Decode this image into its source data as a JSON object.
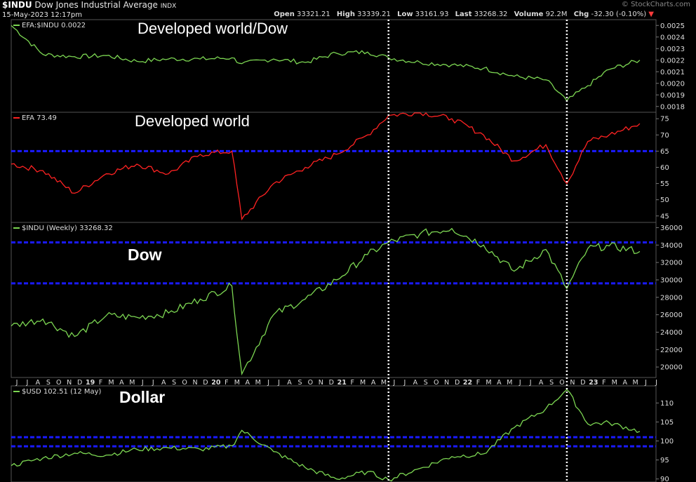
{
  "header": {
    "symbol": "$INDU",
    "name": "Dow Jones Industrial Average",
    "exchange": "INDX",
    "date": "15-May-2023 12:17pm",
    "brand": "© StockCharts.com",
    "open_label": "Open",
    "open": "33321.21",
    "high_label": "High",
    "high": "33339.21",
    "low_label": "Low",
    "low": "33161.93",
    "last_label": "Last",
    "last": "33268.32",
    "volume_label": "Volume",
    "volume": "92.2M",
    "chg_label": "Chg",
    "chg": "-32.30 (-0.10%)"
  },
  "annotations": {
    "ratio": "Developed world/Dow",
    "efa": "Developed world",
    "dow": "Dow",
    "dollar": "Dollar"
  },
  "colors": {
    "background": "#000000",
    "green": "#7cd652",
    "red": "#ff2222",
    "blue_dash": "#1a1aff",
    "marker": "#ffffff"
  },
  "chart_data": [
    {
      "type": "line",
      "legend": "EFA:$INDU 0.0022",
      "ylim": [
        0.00175,
        0.00255
      ],
      "yticks": [
        "0.0018",
        "0.0019",
        "0.0020",
        "0.0021",
        "0.0022",
        "0.0023",
        "0.0024",
        "0.0025"
      ],
      "color": "#7cd652",
      "x": [
        "2018-05",
        "2018-08",
        "2018-11",
        "2019-02",
        "2019-05",
        "2019-08",
        "2019-11",
        "2020-02",
        "2020-03",
        "2020-06",
        "2020-09",
        "2020-12",
        "2021-03",
        "2021-05",
        "2021-08",
        "2021-11",
        "2022-02",
        "2022-05",
        "2022-08",
        "2022-10",
        "2022-12",
        "2023-02",
        "2023-05"
      ],
      "y": [
        0.0025,
        0.00225,
        0.00223,
        0.00224,
        0.00219,
        0.00221,
        0.00221,
        0.00222,
        0.00217,
        0.00221,
        0.00218,
        0.00226,
        0.00227,
        0.00222,
        0.00218,
        0.00216,
        0.00213,
        0.00206,
        0.00203,
        0.00185,
        0.00198,
        0.00212,
        0.0022
      ]
    },
    {
      "type": "line",
      "legend": "EFA 73.49",
      "ylim": [
        43,
        77
      ],
      "yticks": [
        "45",
        "50",
        "55",
        "60",
        "65",
        "70",
        "75"
      ],
      "color": "#ff2222",
      "hlines": [
        65
      ],
      "x": [
        "2018-05",
        "2018-08",
        "2018-11",
        "2019-02",
        "2019-05",
        "2019-08",
        "2019-11",
        "2020-02",
        "2020-03",
        "2020-06",
        "2020-09",
        "2020-12",
        "2021-03",
        "2021-05",
        "2021-08",
        "2021-11",
        "2022-02",
        "2022-05",
        "2022-08",
        "2022-10",
        "2022-12",
        "2023-02",
        "2023-05"
      ],
      "y": [
        61,
        59,
        52,
        58,
        61,
        58,
        64,
        65,
        44,
        55,
        60,
        64,
        70,
        76,
        77,
        75,
        70,
        62,
        67,
        55,
        68,
        70,
        73.49
      ]
    },
    {
      "type": "line",
      "legend": "$INDU (Weekly) 33268.32",
      "ylim": [
        18800,
        36600
      ],
      "yticks": [
        "20000",
        "22000",
        "24000",
        "26000",
        "28000",
        "30000",
        "32000",
        "34000",
        "36000"
      ],
      "color": "#7cd652",
      "hlines": [
        34300,
        29600
      ],
      "x": [
        "2018-05",
        "2018-08",
        "2018-11",
        "2019-02",
        "2019-05",
        "2019-08",
        "2019-11",
        "2020-02",
        "2020-03",
        "2020-06",
        "2020-09",
        "2020-12",
        "2021-03",
        "2021-05",
        "2021-08",
        "2021-11",
        "2022-02",
        "2022-05",
        "2022-08",
        "2022-10",
        "2022-12",
        "2023-02",
        "2023-05"
      ],
      "y": [
        24700,
        25500,
        23500,
        25900,
        25700,
        26200,
        27800,
        29300,
        19200,
        26000,
        27800,
        30000,
        32900,
        34300,
        35300,
        35900,
        34000,
        31000,
        33500,
        29000,
        33600,
        33900,
        33268
      ]
    },
    {
      "type": "line",
      "legend": "$USD 102.51 (12 May)",
      "ylim": [
        89.2,
        114.5
      ],
      "yticks": [
        "90",
        "95",
        "100",
        "105",
        "110"
      ],
      "color": "#7cd652",
      "hlines": [
        101,
        98.6
      ],
      "x": [
        "2018-05",
        "2018-08",
        "2018-11",
        "2019-02",
        "2019-05",
        "2019-08",
        "2019-11",
        "2020-02",
        "2020-03",
        "2020-06",
        "2020-09",
        "2020-12",
        "2021-03",
        "2021-05",
        "2021-08",
        "2021-11",
        "2022-02",
        "2022-05",
        "2022-08",
        "2022-10",
        "2022-12",
        "2023-02",
        "2023-05"
      ],
      "y": [
        93.5,
        95.5,
        96.8,
        96.3,
        97.8,
        98.2,
        97.8,
        98.7,
        102.8,
        97.2,
        93.0,
        90.0,
        91.9,
        89.8,
        92.8,
        95.9,
        96.6,
        103.5,
        108.5,
        113.5,
        104.5,
        104.8,
        102.51
      ]
    }
  ],
  "x_axis": {
    "labels": [
      "J",
      "J",
      "A",
      "S",
      "O",
      "N",
      "D",
      "19",
      "F",
      "M",
      "A",
      "M",
      "J",
      "J",
      "A",
      "S",
      "O",
      "N",
      "D",
      "20",
      "F",
      "M",
      "A",
      "M",
      "J",
      "J",
      "A",
      "S",
      "O",
      "N",
      "D",
      "21",
      "F",
      "M",
      "A",
      "M",
      "J",
      "J",
      "A",
      "S",
      "O",
      "N",
      "D",
      "22",
      "F",
      "M",
      "A",
      "M",
      "J",
      "J",
      "A",
      "S",
      "O",
      "N",
      "D",
      "23",
      "F",
      "M",
      "A",
      "M",
      "J",
      "J"
    ],
    "bold": [
      "19",
      "20",
      "21",
      "22",
      "23"
    ],
    "markers": [
      "2021-05",
      "2022-10"
    ]
  }
}
